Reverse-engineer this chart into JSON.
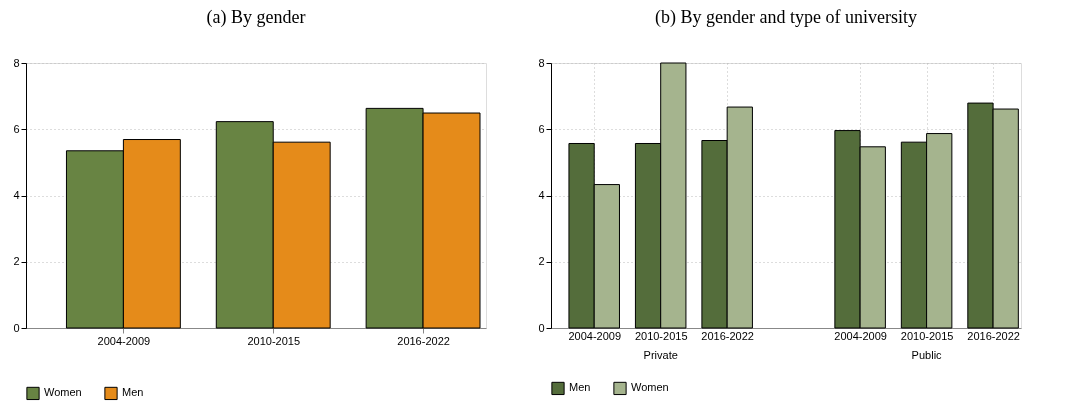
{
  "chart_data": [
    {
      "type": "bar",
      "title": "(a) By gender",
      "categories": [
        "2004-2009",
        "2010-2015",
        "2016-2022"
      ],
      "series": [
        {
          "name": "Women",
          "color": "#688443",
          "values": [
            5.35,
            6.23,
            6.63
          ]
        },
        {
          "name": "Men",
          "color": "#e58b1a",
          "values": [
            5.69,
            5.61,
            6.49
          ]
        }
      ],
      "ylim": [
        0,
        8
      ],
      "yticks": [
        0,
        2,
        4,
        6,
        8
      ],
      "grid": "y",
      "legend": "bottom"
    },
    {
      "type": "bar",
      "title": "(b) By gender and type of university",
      "categories": [
        "2004-2009",
        "2010-2015",
        "2016-2022",
        null,
        "2004-2009",
        "2010-2015",
        "2016-2022"
      ],
      "series": [
        {
          "name": "Men",
          "color": "#546d3b",
          "values": [
            5.57,
            5.57,
            5.66,
            null,
            5.96,
            5.61,
            6.79
          ]
        },
        {
          "name": "Women",
          "color": "#a5b48e",
          "values": [
            4.33,
            8.0,
            6.67,
            null,
            5.47,
            5.87,
            6.61
          ]
        }
      ],
      "annotations": [
        "Private",
        "Public"
      ],
      "ylim": [
        0,
        8
      ],
      "yticks": [
        0,
        2,
        4,
        6,
        8
      ],
      "grid": true,
      "legend": "bottom"
    }
  ]
}
